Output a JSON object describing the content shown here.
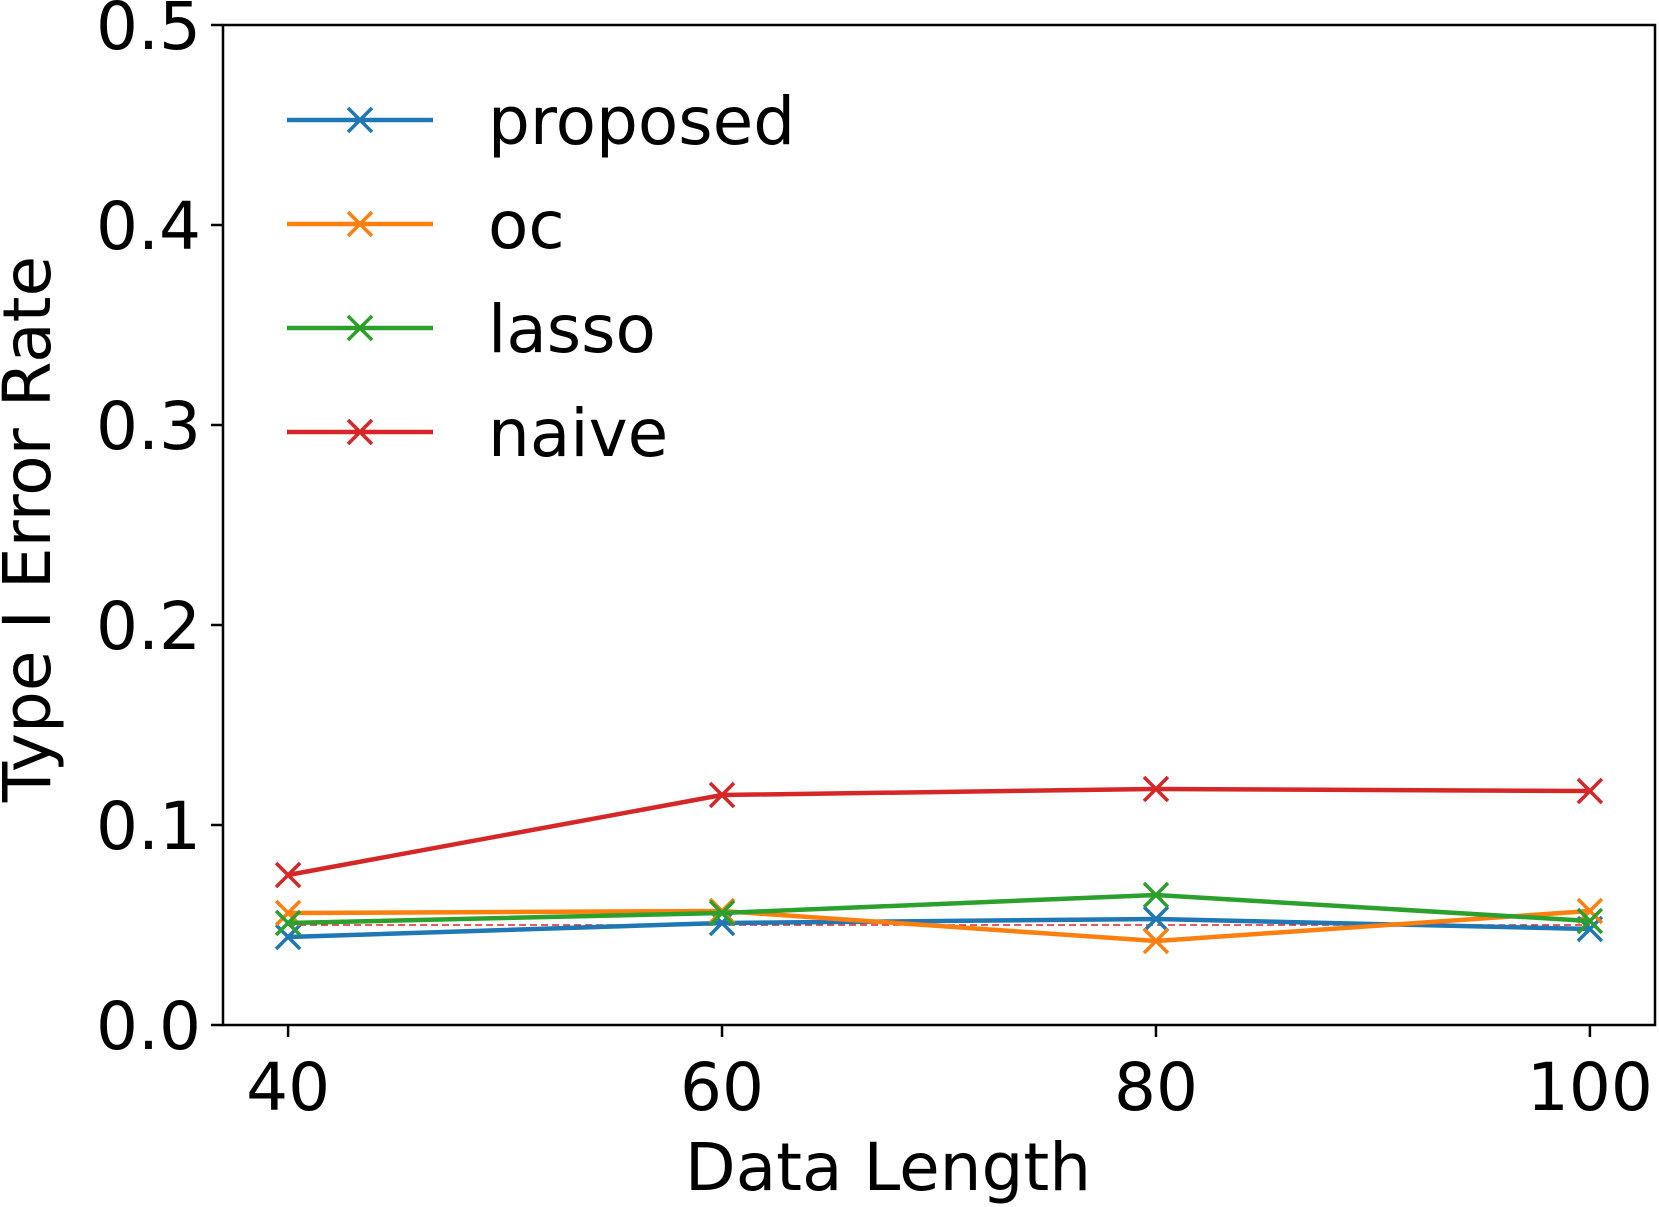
{
  "chart_data": {
    "type": "line",
    "title": "",
    "xlabel": "Data Length",
    "ylabel": "Type I Error Rate",
    "x": [
      40,
      60,
      80,
      100
    ],
    "xticks": [
      "40",
      "60",
      "80",
      "100"
    ],
    "yticks": [
      "0.0",
      "0.1",
      "0.2",
      "0.3",
      "0.4",
      "0.5"
    ],
    "ylim": [
      0,
      0.5
    ],
    "xlim": [
      37,
      103
    ],
    "grid": false,
    "legend_position": "top-left",
    "marker": "x",
    "reference_line": {
      "y": 0.05,
      "style": "dashed",
      "color": "#d62728"
    },
    "series": [
      {
        "name": "proposed",
        "color": "#1f77b4",
        "values": [
          0.044,
          0.051,
          0.053,
          0.048
        ]
      },
      {
        "name": "oc",
        "color": "#ff7f0e",
        "values": [
          0.056,
          0.057,
          0.042,
          0.057
        ]
      },
      {
        "name": "lasso",
        "color": "#2ca02c",
        "values": [
          0.051,
          0.056,
          0.065,
          0.052
        ]
      },
      {
        "name": "naive",
        "color": "#d62728",
        "values": [
          0.075,
          0.115,
          0.118,
          0.117
        ]
      }
    ]
  }
}
